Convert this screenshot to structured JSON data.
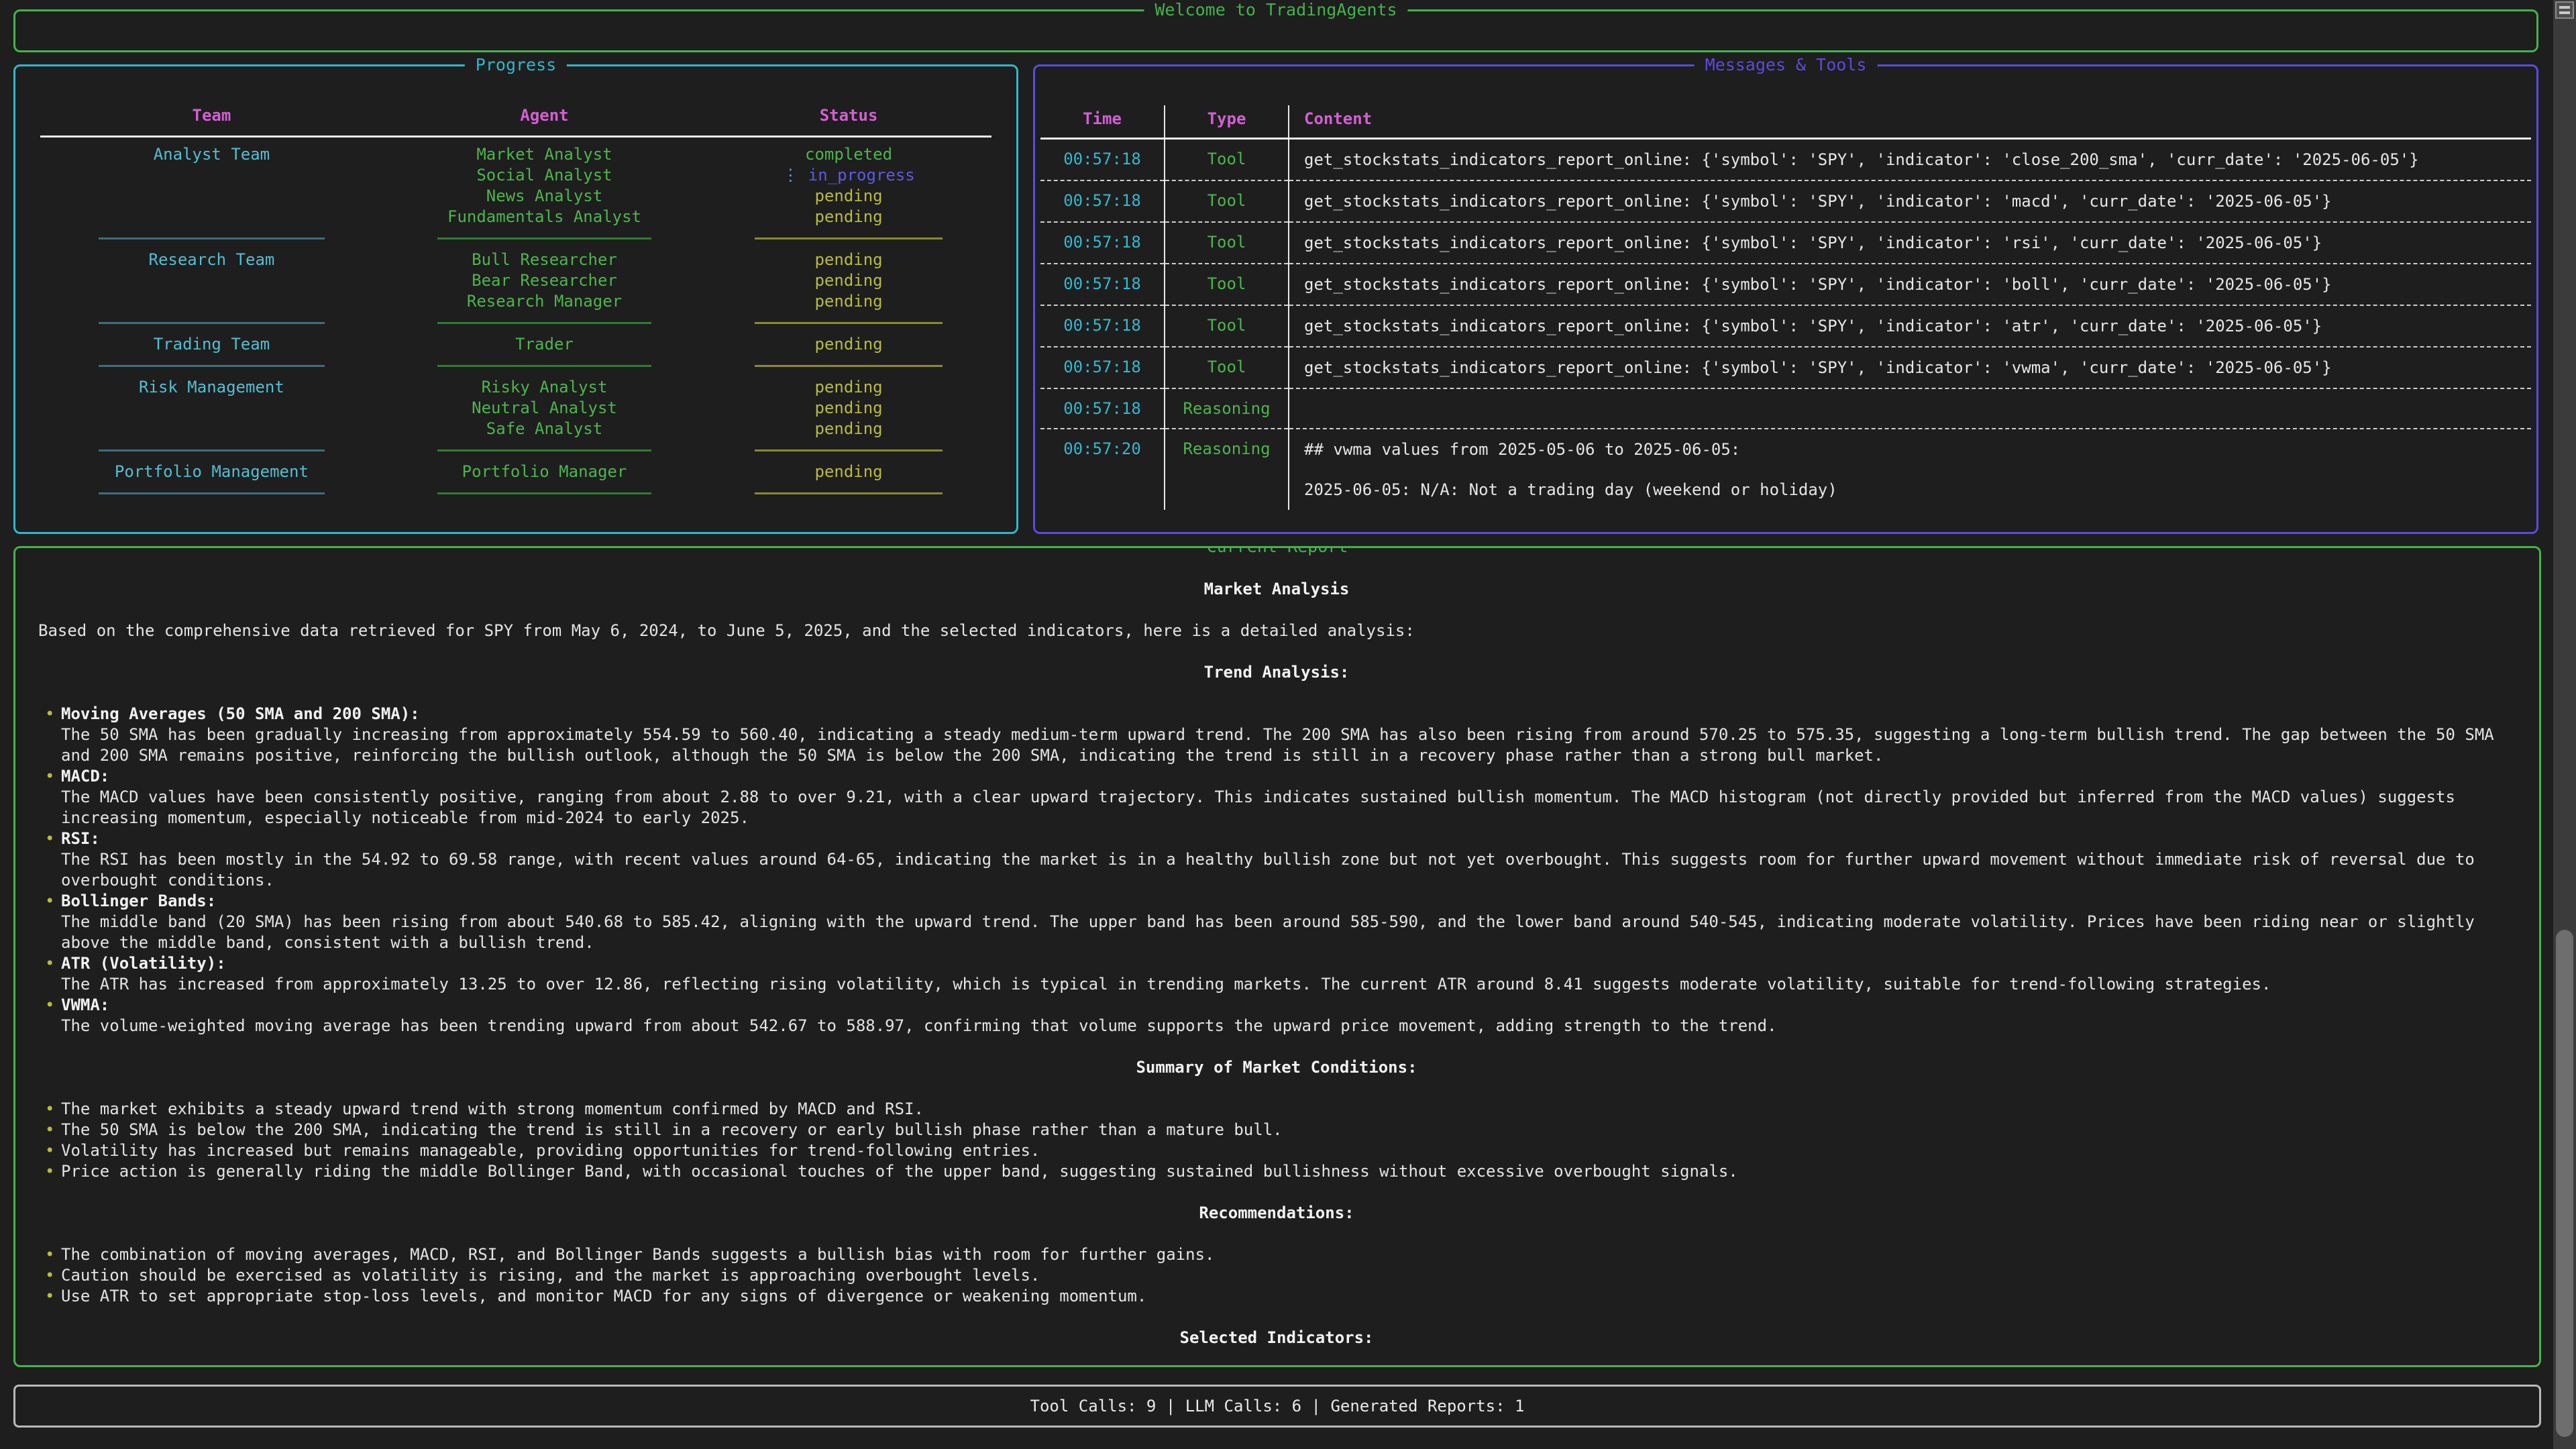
{
  "app": {
    "title": "Welcome to TradingAgents"
  },
  "bullet_char": "•",
  "colors": {
    "background": "#1e1e1e",
    "green": "#43b34c",
    "cyan": "#2eb8d0",
    "magenta": "#d45fd4",
    "purple": "#5a4be3",
    "yellow_pending": "#b9bb3f",
    "blue_in_progress": "#5b5be4",
    "text": "#e4e4e4"
  },
  "progress": {
    "title": "Progress",
    "columns": [
      "Team",
      "Agent",
      "Status"
    ],
    "groups": [
      {
        "team": "Analyst Team",
        "agents": [
          {
            "name": "Market Analyst",
            "status": "completed"
          },
          {
            "name": "Social Analyst",
            "status": "in_progress",
            "icon": "⋮"
          },
          {
            "name": "News Analyst",
            "status": "pending"
          },
          {
            "name": "Fundamentals Analyst",
            "status": "pending"
          }
        ]
      },
      {
        "team": "Research Team",
        "agents": [
          {
            "name": "Bull Researcher",
            "status": "pending"
          },
          {
            "name": "Bear Researcher",
            "status": "pending"
          },
          {
            "name": "Research Manager",
            "status": "pending"
          }
        ]
      },
      {
        "team": "Trading Team",
        "agents": [
          {
            "name": "Trader",
            "status": "pending"
          }
        ]
      },
      {
        "team": "Risk Management",
        "agents": [
          {
            "name": "Risky Analyst",
            "status": "pending"
          },
          {
            "name": "Neutral Analyst",
            "status": "pending"
          },
          {
            "name": "Safe Analyst",
            "status": "pending"
          }
        ]
      },
      {
        "team": "Portfolio Management",
        "agents": [
          {
            "name": "Portfolio Manager",
            "status": "pending"
          }
        ]
      }
    ]
  },
  "messages": {
    "title": "Messages & Tools",
    "columns": [
      "Time",
      "Type",
      "Content"
    ],
    "rows": [
      {
        "time": "00:57:18",
        "type": "Tool",
        "content": "get_stockstats_indicators_report_online: {'symbol': 'SPY', 'indicator': 'close_200_sma', 'curr_date': '2025-06-05'}"
      },
      {
        "time": "00:57:18",
        "type": "Tool",
        "content": "get_stockstats_indicators_report_online: {'symbol': 'SPY', 'indicator': 'macd', 'curr_date': '2025-06-05'}"
      },
      {
        "time": "00:57:18",
        "type": "Tool",
        "content": "get_stockstats_indicators_report_online: {'symbol': 'SPY', 'indicator': 'rsi', 'curr_date': '2025-06-05'}"
      },
      {
        "time": "00:57:18",
        "type": "Tool",
        "content": "get_stockstats_indicators_report_online: {'symbol': 'SPY', 'indicator': 'boll', 'curr_date': '2025-06-05'}"
      },
      {
        "time": "00:57:18",
        "type": "Tool",
        "content": "get_stockstats_indicators_report_online: {'symbol': 'SPY', 'indicator': 'atr', 'curr_date': '2025-06-05'}"
      },
      {
        "time": "00:57:18",
        "type": "Tool",
        "content": "get_stockstats_indicators_report_online: {'symbol': 'SPY', 'indicator': 'vwma', 'curr_date': '2025-06-05'}"
      },
      {
        "time": "00:57:18",
        "type": "Reasoning",
        "content": ""
      },
      {
        "time": "00:57:20",
        "type": "Reasoning",
        "content": "## vwma values from 2025-05-06 to 2025-06-05:\n\n2025-06-05: N/A: Not a trading day (weekend or holiday)"
      }
    ]
  },
  "report": {
    "title": "Current Report",
    "blocks": [
      {
        "type": "heading",
        "text": "Market Analysis"
      },
      {
        "type": "paragraph",
        "text": "Based on the comprehensive data retrieved for SPY from May 6, 2024, to June 5, 2025, and the selected indicators, here is a detailed analysis:"
      },
      {
        "type": "heading",
        "text": "Trend Analysis:"
      },
      {
        "type": "bullets",
        "items": [
          {
            "title": "Moving Averages (50 SMA and 200 SMA):",
            "body": "The 50 SMA has been gradually increasing from approximately 554.59 to 560.40, indicating a steady medium-term upward trend. The 200 SMA has also been rising from around 570.25 to 575.35, suggesting a long-term bullish trend. The gap between the 50 SMA and 200 SMA remains positive, reinforcing the bullish outlook, although the 50 SMA is below the 200 SMA, indicating the trend is still in a recovery phase rather than a strong bull market."
          },
          {
            "title": "MACD:",
            "body": "The MACD values have been consistently positive, ranging from about 2.88 to over 9.21, with a clear upward trajectory. This indicates sustained bullish momentum. The MACD histogram (not directly provided but inferred from the MACD values) suggests increasing momentum, especially noticeable from mid-2024 to early 2025."
          },
          {
            "title": "RSI:",
            "body": "The RSI has been mostly in the 54.92 to 69.58 range, with recent values around 64-65, indicating the market is in a healthy bullish zone but not yet overbought. This suggests room for further upward movement without immediate risk of reversal due to overbought conditions."
          },
          {
            "title": "Bollinger Bands:",
            "body": "The middle band (20 SMA) has been rising from about 540.68 to 585.42, aligning with the upward trend. The upper band has been around 585-590, and the lower band around 540-545, indicating moderate volatility. Prices have been riding near or slightly above the middle band, consistent with a bullish trend."
          },
          {
            "title": "ATR (Volatility):",
            "body": "The ATR has increased from approximately 13.25 to over 12.86, reflecting rising volatility, which is typical in trending markets. The current ATR around 8.41 suggests moderate volatility, suitable for trend-following strategies."
          },
          {
            "title": "VWMA:",
            "body": "The volume-weighted moving average has been trending upward from about 542.67 to 588.97, confirming that volume supports the upward price movement, adding strength to the trend."
          }
        ]
      },
      {
        "type": "heading",
        "text": "Summary of Market Conditions:"
      },
      {
        "type": "bullets",
        "items": [
          {
            "body": "The market exhibits a steady upward trend with strong momentum confirmed by MACD and RSI."
          },
          {
            "body": "The 50 SMA is below the 200 SMA, indicating the trend is still in a recovery or early bullish phase rather than a mature bull."
          },
          {
            "body": "Volatility has increased but remains manageable, providing opportunities for trend-following entries."
          },
          {
            "body": "Price action is generally riding the middle Bollinger Band, with occasional touches of the upper band, suggesting sustained bullishness without excessive overbought signals."
          }
        ]
      },
      {
        "type": "heading",
        "text": "Recommendations:"
      },
      {
        "type": "bullets",
        "items": [
          {
            "body": "The combination of moving averages, MACD, RSI, and Bollinger Bands suggests a bullish bias with room for further gains."
          },
          {
            "body": "Caution should be exercised as volatility is rising, and the market is approaching overbought levels."
          },
          {
            "body": "Use ATR to set appropriate stop-loss levels, and monitor MACD for any signs of divergence or weakening momentum."
          }
        ]
      },
      {
        "type": "heading",
        "text": "Selected Indicators:"
      }
    ]
  },
  "stats": {
    "text": "Tool Calls: 9 | LLM Calls: 6 | Generated Reports: 1"
  }
}
